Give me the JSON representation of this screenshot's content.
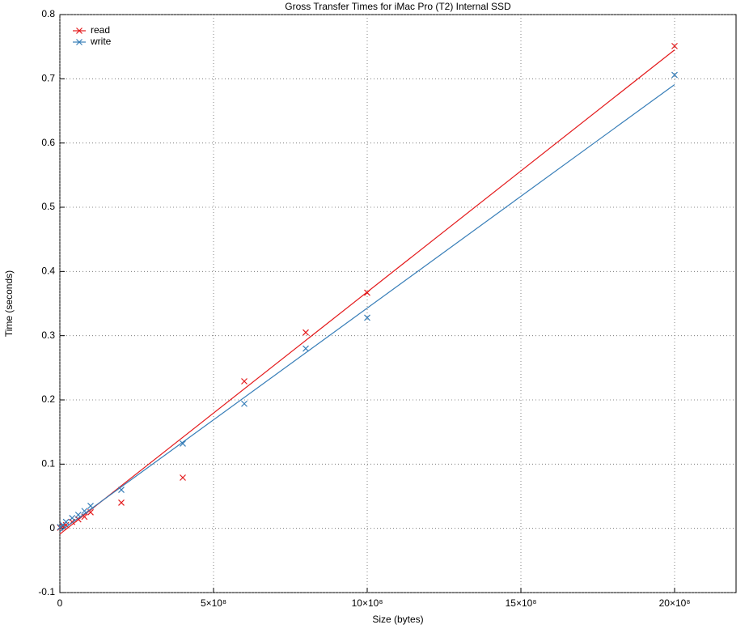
{
  "chart_data": {
    "type": "scatter",
    "title": "Gross Transfer Times for iMac Pro (T2) Internal SSD",
    "xlabel": "Size (bytes)",
    "ylabel": "Time (seconds)",
    "xlim": [
      0,
      2200000000
    ],
    "ylim": [
      -0.1,
      0.8
    ],
    "xticks": [
      0,
      {
        "value": 500000000,
        "label": "5×10⁸"
      },
      {
        "value": 1000000000,
        "label": "10×10⁸"
      },
      {
        "value": 1500000000,
        "label": "15×10⁸"
      },
      {
        "value": 2000000000,
        "label": "20×10⁸"
      }
    ],
    "yticks": [
      -0.1,
      0,
      0.1,
      0.2,
      0.3,
      0.4,
      0.5,
      0.6,
      0.7,
      0.8
    ],
    "grid": true,
    "legend": "upper left",
    "series": [
      {
        "name": "read",
        "color": "#e41a1c",
        "x": [
          1000000,
          10000000,
          20000000,
          40000000,
          60000000,
          80000000,
          100000000,
          200000000,
          400000000,
          600000000,
          800000000,
          1000000000,
          2000000000
        ],
        "values": [
          0.001,
          0.003,
          0.005,
          0.01,
          0.014,
          0.018,
          0.025,
          0.04,
          0.079,
          0.229,
          0.305,
          0.367,
          0.751
        ],
        "fit": {
          "x": [
            0,
            2000000000
          ],
          "values": [
            -0.009,
            0.745
          ]
        }
      },
      {
        "name": "write",
        "color": "#377eb8",
        "x": [
          1000000,
          10000000,
          20000000,
          40000000,
          60000000,
          80000000,
          100000000,
          200000000,
          400000000,
          600000000,
          800000000,
          1000000000,
          2000000000
        ],
        "values": [
          0.002,
          0.005,
          0.01,
          0.016,
          0.021,
          0.027,
          0.035,
          0.06,
          0.132,
          0.194,
          0.28,
          0.328,
          0.706
        ],
        "fit": {
          "x": [
            0,
            2000000000
          ],
          "values": [
            -0.005,
            0.691
          ]
        }
      }
    ]
  }
}
